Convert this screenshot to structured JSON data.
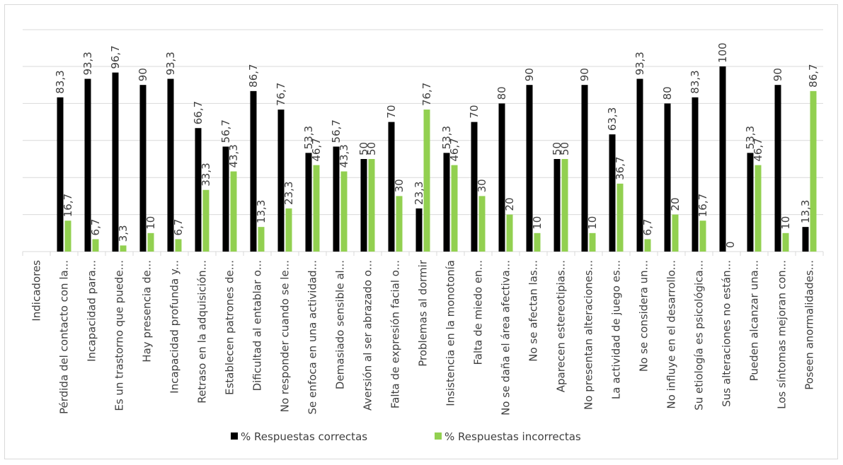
{
  "chart_data": {
    "type": "bar",
    "title": "",
    "xlabel": "",
    "ylabel": "",
    "ylim": [
      0,
      100
    ],
    "grid": true,
    "legend_position": "bottom",
    "colors": {
      "correct": "#000000",
      "incorrect": "#92d050",
      "grid": "#d9d9d9"
    },
    "categories": [
      "Indicadores",
      "Pérdida del contacto con la...",
      "Incapacidad para...",
      "Es un trastorno que puede...",
      "Hay presencia de...",
      "Incapacidad profunda y...",
      "Retraso en la adquisición...",
      "Establecen patrones de...",
      "Dificultad al entablar o...",
      "No responder cuando se le...",
      "Se enfoca en una actividad...",
      "Demasiado sensible al...",
      "Aversión al ser abrazado o...",
      "Falta de expresión facial o...",
      "Problemas al dormir",
      "Insistencia en la monotonía",
      "Falta de miedo en...",
      "No se daña el área afectiva...",
      "No se afectan las...",
      "Aparecen estereotipias...",
      "No presentan alteraciones...",
      "La actividad de juego es...",
      "No se considera un...",
      "No influye en el desarrollo...",
      "Su etiología es psicológica...",
      "Sus alteraciones no están...",
      "Pueden alcanzar una...",
      "Los síntomas mejoran con...",
      "Poseen anormalidades..."
    ],
    "series": [
      {
        "name": "% Respuestas correctas",
        "values": [
          null,
          83.3,
          93.3,
          96.7,
          90,
          93.3,
          66.7,
          56.7,
          86.7,
          76.7,
          53.3,
          56.7,
          50,
          70,
          23.3,
          53.3,
          70,
          80,
          90,
          50,
          90,
          63.3,
          93.3,
          80,
          83.3,
          100,
          53.3,
          90,
          13.3
        ],
        "labels": [
          "",
          "83,3",
          "93,3",
          "96,7",
          "90",
          "93,3",
          "66,7",
          "56,7",
          "86,7",
          "76,7",
          "53,3",
          "56,7",
          "50",
          "70",
          "23,3",
          "53,3",
          "70",
          "80",
          "90",
          "50",
          "90",
          "63,3",
          "93,3",
          "80",
          "83,3",
          "100",
          "53,3",
          "90",
          "13,3"
        ]
      },
      {
        "name": "% Respuestas incorrectas",
        "values": [
          null,
          16.7,
          6.7,
          3.3,
          10,
          6.7,
          33.3,
          43.3,
          13.3,
          23.3,
          46.7,
          43.3,
          50,
          30,
          76.7,
          46.7,
          30,
          20,
          10,
          50,
          10,
          36.7,
          6.7,
          20,
          16.7,
          0,
          46.7,
          10,
          86.7
        ],
        "labels": [
          "",
          "16,7",
          "6,7",
          "3,3",
          "10",
          "6,7",
          "33,3",
          "43,3",
          "13,3",
          "23,3",
          "46,7",
          "43,3",
          "50",
          "30",
          "76,7",
          "46,7",
          "30",
          "20",
          "10",
          "50",
          "10",
          "36,7",
          "6,7",
          "20",
          "16,7",
          "0",
          "46,7",
          "10",
          "86,7"
        ]
      }
    ]
  }
}
